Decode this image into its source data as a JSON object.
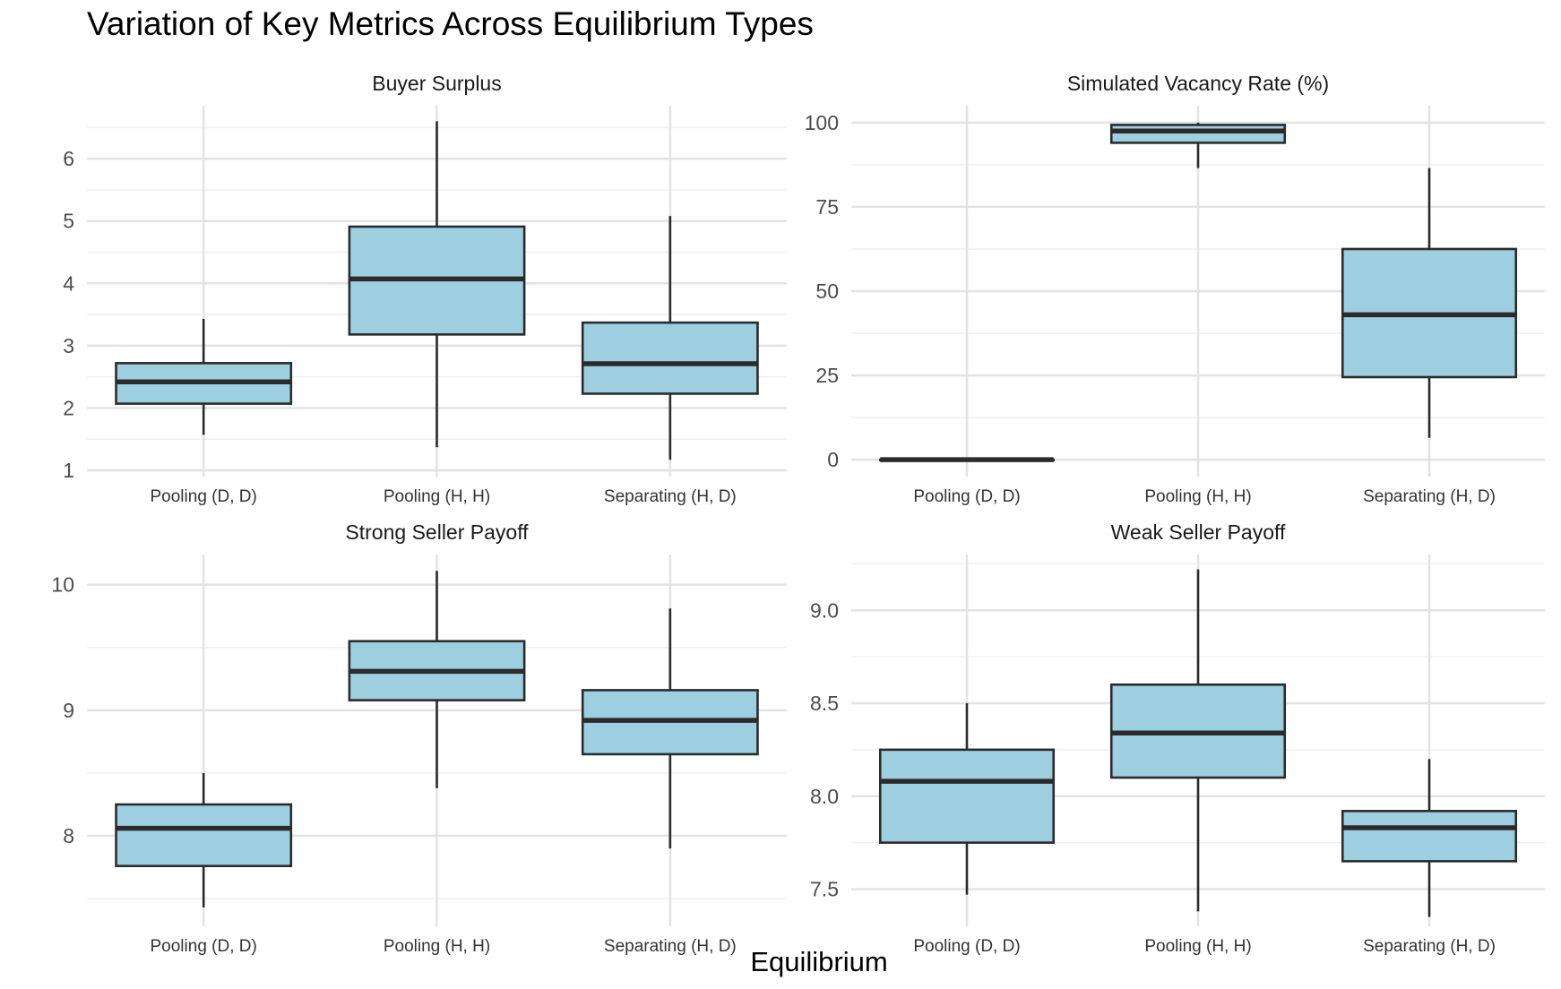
{
  "title": "Variation of Key Metrics Across Equilibrium Types",
  "x_axis_title": "Equilibrium",
  "chart_data": [
    {
      "type": "boxplot",
      "title": "Buyer Surplus",
      "categories": [
        "Pooling (D, D)",
        "Pooling (H, H)",
        "Separating (H, D)"
      ],
      "ylim": [
        0.9,
        6.85
      ],
      "yticks": [
        1,
        2,
        3,
        4,
        5,
        6
      ],
      "yticklabels": [
        "1",
        "2",
        "3",
        "4",
        "5",
        "6"
      ],
      "boxes": [
        {
          "min": 1.57,
          "q1": 2.07,
          "median": 2.42,
          "q3": 2.72,
          "max": 3.43
        },
        {
          "min": 1.37,
          "q1": 3.18,
          "median": 4.07,
          "q3": 4.91,
          "max": 6.6
        },
        {
          "min": 1.17,
          "q1": 2.23,
          "median": 2.71,
          "q3": 3.37,
          "max": 5.08
        }
      ],
      "fill": "#9ecfe0",
      "line": "#2b2b2b",
      "grid": true
    },
    {
      "type": "boxplot",
      "title": "Simulated Vacancy Rate (%)",
      "categories": [
        "Pooling (D, D)",
        "Pooling (H, H)",
        "Separating (H, D)"
      ],
      "ylim": [
        -5,
        105
      ],
      "yticks": [
        0,
        25,
        50,
        75,
        100
      ],
      "yticklabels": [
        "0",
        "25",
        "50",
        "75",
        "100"
      ],
      "boxes": [
        {
          "min": 0,
          "q1": 0,
          "median": 0,
          "q3": 0,
          "max": 0
        },
        {
          "min": 86.5,
          "q1": 94,
          "median": 97.5,
          "q3": 99.3,
          "max": 100
        },
        {
          "min": 6.5,
          "q1": 24.5,
          "median": 43,
          "q3": 62.5,
          "max": 86.5
        }
      ],
      "fill": "#9ecfe0",
      "line": "#2b2b2b",
      "grid": true
    },
    {
      "type": "boxplot",
      "title": "Strong Seller Payoff",
      "categories": [
        "Pooling (D, D)",
        "Pooling (H, H)",
        "Separating (H, D)"
      ],
      "ylim": [
        7.28,
        10.24
      ],
      "yticks": [
        8,
        9,
        10
      ],
      "yticklabels": [
        "8",
        "9",
        "10"
      ],
      "boxes": [
        {
          "min": 7.43,
          "q1": 7.76,
          "median": 8.06,
          "q3": 8.25,
          "max": 8.5
        },
        {
          "min": 8.38,
          "q1": 9.08,
          "median": 9.31,
          "q3": 9.55,
          "max": 10.11
        },
        {
          "min": 7.9,
          "q1": 8.65,
          "median": 8.92,
          "q3": 9.16,
          "max": 9.81
        }
      ],
      "fill": "#9ecfe0",
      "line": "#2b2b2b",
      "grid": true
    },
    {
      "type": "boxplot",
      "title": "Weak Seller Payoff",
      "categories": [
        "Pooling (D, D)",
        "Pooling (H, H)",
        "Separating (H, D)"
      ],
      "ylim": [
        7.3,
        9.3
      ],
      "yticks": [
        7.5,
        8.0,
        8.5,
        9.0
      ],
      "yticklabels": [
        "7.5",
        "8.0",
        "8.5",
        "9.0"
      ],
      "boxes": [
        {
          "min": 7.47,
          "q1": 7.75,
          "median": 8.08,
          "q3": 8.25,
          "max": 8.5
        },
        {
          "min": 7.38,
          "q1": 8.1,
          "median": 8.34,
          "q3": 8.6,
          "max": 9.22
        },
        {
          "min": 7.35,
          "q1": 7.65,
          "median": 7.83,
          "q3": 7.92,
          "max": 8.2
        }
      ],
      "fill": "#9ecfe0",
      "line": "#2b2b2b",
      "grid": true
    }
  ]
}
